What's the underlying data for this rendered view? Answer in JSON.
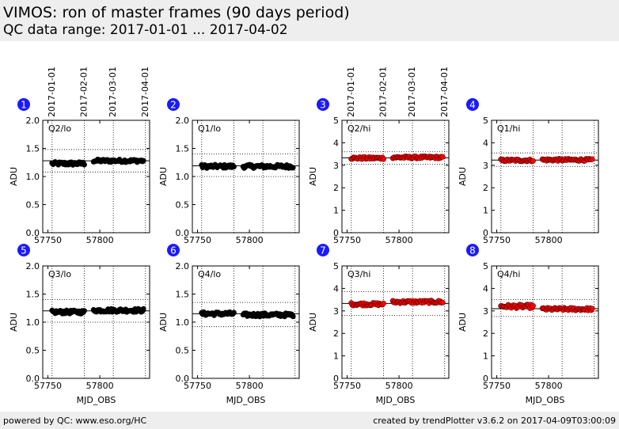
{
  "header": {
    "title": "VIMOS: ron of master frames (90 days period)",
    "subtitle": "QC data range: 2017-01-01 ... 2017-04-02"
  },
  "footer": {
    "left": "powered by QC: www.eso.org/HC",
    "right": "created by trendPlotter v3.6.2 on 2017-04-09T03:00:09"
  },
  "colors": {
    "lo": "#000000",
    "hi": "#ff0000",
    "badge": "#1a1aff"
  },
  "date_ticks": [
    "2017-01-01",
    "2017-02-01",
    "2017-03-01",
    "2017-04-01"
  ],
  "date_tick_mjd": [
    57754,
    57785,
    57813,
    57844
  ],
  "chart_data": [
    {
      "id": "1",
      "label": "Q2/lo",
      "type": "scatter",
      "color": "#000000",
      "ylim": [
        0,
        2.0
      ],
      "yticks": [
        0.0,
        0.5,
        1.0,
        1.5,
        2.0
      ],
      "xlim": [
        57745,
        57848
      ],
      "xticks": [
        57750,
        57800
      ],
      "ylabel": "ADU",
      "xlabel": "",
      "ref_line": 1.28,
      "limits": [
        1.48,
        1.08
      ],
      "segments": [
        {
          "from": 57754,
          "to": 57785,
          "base": 1.23,
          "jitter": 0.03
        },
        {
          "from": 57794,
          "to": 57842,
          "base": 1.28,
          "jitter": 0.025
        }
      ]
    },
    {
      "id": "2",
      "label": "Q1/lo",
      "type": "scatter",
      "color": "#000000",
      "ylim": [
        0,
        2.0
      ],
      "yticks": [
        0.0,
        0.5,
        1.0,
        1.5,
        2.0
      ],
      "xlim": [
        57745,
        57848
      ],
      "xticks": [
        57750,
        57800
      ],
      "ylabel": "ADU",
      "xlabel": "",
      "ref_line": 1.19,
      "limits": [
        1.4,
        1.0
      ],
      "segments": [
        {
          "from": 57754,
          "to": 57785,
          "base": 1.18,
          "jitter": 0.03
        },
        {
          "from": 57794,
          "to": 57842,
          "base": 1.18,
          "jitter": 0.03
        }
      ]
    },
    {
      "id": "3",
      "label": "Q2/hi",
      "type": "scatter",
      "color": "#ff0000",
      "ylim": [
        0,
        5
      ],
      "yticks": [
        0,
        1,
        2,
        3,
        4,
        5
      ],
      "xlim": [
        57745,
        57848
      ],
      "xticks": [
        57750,
        57800
      ],
      "ylabel": "ADU",
      "xlabel": "",
      "ref_line": 3.33,
      "limits": [
        3.6,
        3.05
      ],
      "segments": [
        {
          "from": 57754,
          "to": 57785,
          "base": 3.32,
          "jitter": 0.05
        },
        {
          "from": 57794,
          "to": 57842,
          "base": 3.35,
          "jitter": 0.05
        }
      ]
    },
    {
      "id": "4",
      "label": "Q1/hi",
      "type": "scatter",
      "color": "#ff0000",
      "ylim": [
        0,
        5
      ],
      "yticks": [
        0,
        1,
        2,
        3,
        4,
        5
      ],
      "xlim": [
        57745,
        57848
      ],
      "xticks": [
        57750,
        57800
      ],
      "ylabel": "ADU",
      "xlabel": "",
      "ref_line": 3.23,
      "limits": [
        3.55,
        2.95
      ],
      "segments": [
        {
          "from": 57754,
          "to": 57785,
          "base": 3.22,
          "jitter": 0.05
        },
        {
          "from": 57794,
          "to": 57842,
          "base": 3.24,
          "jitter": 0.05
        }
      ]
    },
    {
      "id": "5",
      "label": "Q3/lo",
      "type": "scatter",
      "color": "#000000",
      "ylim": [
        0,
        2.0
      ],
      "yticks": [
        0.0,
        0.5,
        1.0,
        1.5,
        2.0
      ],
      "xlim": [
        57745,
        57848
      ],
      "xticks": [
        57750,
        57800
      ],
      "ylabel": "ADU",
      "xlabel": "MJD_OBS",
      "ref_line": 1.2,
      "limits": [
        1.4,
        1.0
      ],
      "segments": [
        {
          "from": 57754,
          "to": 57785,
          "base": 1.18,
          "jitter": 0.03
        },
        {
          "from": 57794,
          "to": 57842,
          "base": 1.21,
          "jitter": 0.03
        }
      ]
    },
    {
      "id": "6",
      "label": "Q4/lo",
      "type": "scatter",
      "color": "#000000",
      "ylim": [
        0,
        2.0
      ],
      "yticks": [
        0.0,
        0.5,
        1.0,
        1.5,
        2.0
      ],
      "xlim": [
        57745,
        57848
      ],
      "xticks": [
        57750,
        57800
      ],
      "ylabel": "ADU",
      "xlabel": "MJD_OBS",
      "ref_line": 1.15,
      "limits": [
        1.35,
        0.92
      ],
      "segments": [
        {
          "from": 57754,
          "to": 57785,
          "base": 1.15,
          "jitter": 0.03
        },
        {
          "from": 57794,
          "to": 57842,
          "base": 1.13,
          "jitter": 0.03
        }
      ]
    },
    {
      "id": "7",
      "label": "Q3/hi",
      "type": "scatter",
      "color": "#ff0000",
      "ylim": [
        0,
        5
      ],
      "yticks": [
        0,
        1,
        2,
        3,
        4,
        5
      ],
      "xlim": [
        57745,
        57848
      ],
      "xticks": [
        57750,
        57800
      ],
      "ylabel": "ADU",
      "xlabel": "MJD_OBS",
      "ref_line": 3.33,
      "limits": [
        3.85,
        2.8
      ],
      "segments": [
        {
          "from": 57754,
          "to": 57785,
          "base": 3.3,
          "jitter": 0.06
        },
        {
          "from": 57794,
          "to": 57842,
          "base": 3.4,
          "jitter": 0.06
        }
      ]
    },
    {
      "id": "8",
      "label": "Q4/hi",
      "type": "scatter",
      "color": "#ff0000",
      "ylim": [
        0,
        5
      ],
      "yticks": [
        0,
        1,
        2,
        3,
        4,
        5
      ],
      "xlim": [
        57745,
        57848
      ],
      "xticks": [
        57750,
        57800
      ],
      "ylabel": "ADU",
      "xlabel": "MJD_OBS",
      "ref_line": 3.1,
      "limits": [
        3.5,
        2.75
      ],
      "segments": [
        {
          "from": 57754,
          "to": 57785,
          "base": 3.2,
          "jitter": 0.08
        },
        {
          "from": 57794,
          "to": 57842,
          "base": 3.08,
          "jitter": 0.06
        }
      ]
    }
  ]
}
